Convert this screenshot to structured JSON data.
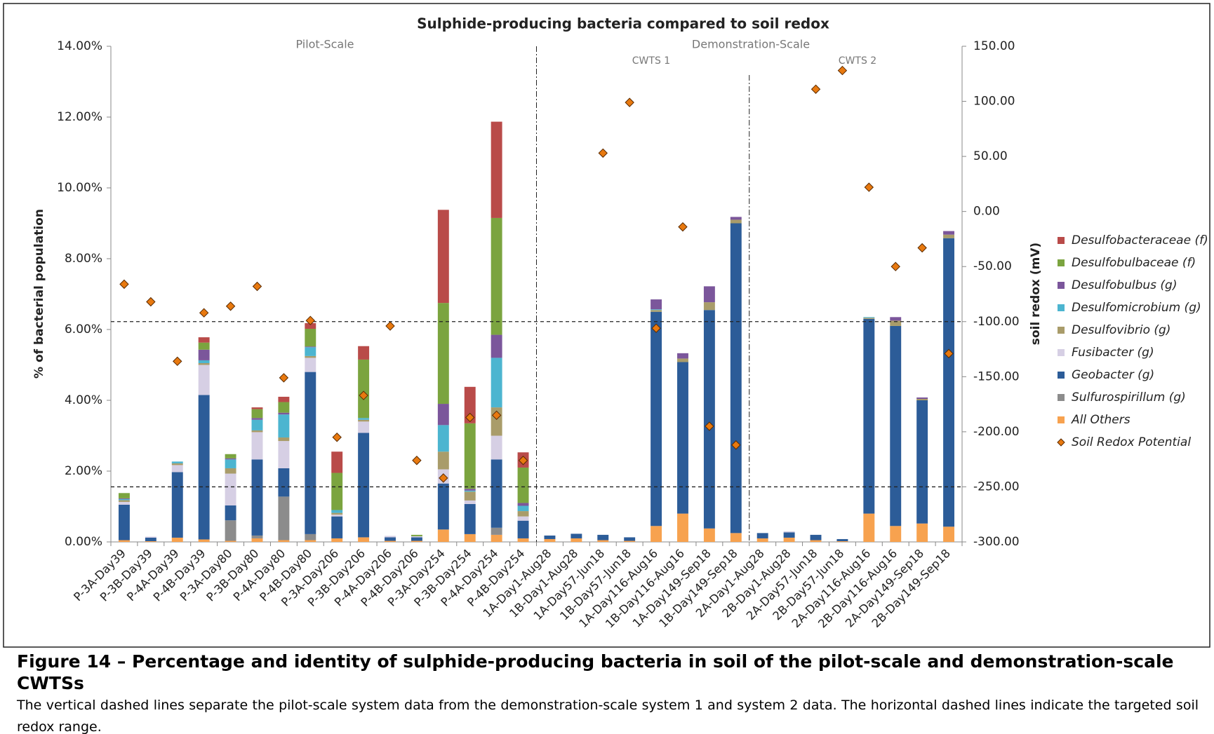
{
  "chart_data": {
    "type": "bar",
    "stacked": true,
    "title": "Sulphide-producing bacteria compared to soil redox",
    "ylabel": "% of bacterial population",
    "y2label": "soil redox (mV)",
    "annotations": [
      "Pilot-Scale",
      "Demonstration-Scale",
      "CWTS 1",
      "CWTS 2"
    ],
    "categories": [
      "P-3A-Day39",
      "P-3B-Day39",
      "P-4A-Day39",
      "P-4B-Day39",
      "P-3A-Day80",
      "P-3B-Day80",
      "P-4A-Day80",
      "P-4B-Day80",
      "P-3A-Day206",
      "P-3B-Day206",
      "P-4A-Day206",
      "P-4B-Day206",
      "P-3A-Day254",
      "P-3B-Day254",
      "P-4A-Day254",
      "P-4B-Day254",
      "1A-Day1-Aug28",
      "1B-Day1-Aug28",
      "1A-Day57-Jun18",
      "1B-Day57-Jun18",
      "1A-Day116-Aug16",
      "1B-Day116-Aug16",
      "1A-Day149-Sep18",
      "1B-Day149-Sep18",
      "2A-Day1-Aug28",
      "2B-Day1-Aug28",
      "2A-Day57-Jun18",
      "2B-Day57-Jun18",
      "2A-Day116-Aug16",
      "2B-Day116-Aug16",
      "2A-Day149-Sep18",
      "2B-Day149-Sep18"
    ],
    "series": [
      {
        "name": "All Others",
        "color": "#f7a24f",
        "values": [
          0.05,
          0.02,
          0.12,
          0.07,
          0.03,
          0.1,
          0.05,
          0.05,
          0.1,
          0.13,
          0.03,
          0.03,
          0.35,
          0.22,
          0.2,
          0.1,
          0.08,
          0.1,
          0.05,
          0.03,
          0.45,
          0.8,
          0.38,
          0.25,
          0.1,
          0.12,
          0.05,
          0.02,
          0.8,
          0.45,
          0.52,
          0.43
        ]
      },
      {
        "name": "Sulfurospirillum (g)",
        "color": "#8c8c8c",
        "values": [
          0,
          0,
          0,
          0,
          0.58,
          0.08,
          1.23,
          0.17,
          0,
          0,
          0,
          0,
          0,
          0,
          0.2,
          0,
          0,
          0,
          0,
          0,
          0,
          0,
          0,
          0,
          0,
          0,
          0,
          0,
          0,
          0,
          0,
          0
        ]
      },
      {
        "name": "Geobacter (g)",
        "color": "#2c5c98",
        "values": [
          1.0,
          0.1,
          1.85,
          4.08,
          0.42,
          2.15,
          0.8,
          4.58,
          0.62,
          2.95,
          0.1,
          0.1,
          1.3,
          0.85,
          1.93,
          0.5,
          0.1,
          0.13,
          0.15,
          0.1,
          6.05,
          4.28,
          6.17,
          8.75,
          0.15,
          0.15,
          0.15,
          0.06,
          5.5,
          5.65,
          3.48,
          8.15
        ]
      },
      {
        "name": "Fusibacter (g)",
        "color": "#d6cfe4",
        "values": [
          0.08,
          0.03,
          0.2,
          0.85,
          0.9,
          0.77,
          0.77,
          0.4,
          0.05,
          0.32,
          0.04,
          0.03,
          0.4,
          0.1,
          0.67,
          0.12,
          0,
          0,
          0,
          0,
          0,
          0,
          0,
          0,
          0,
          0.03,
          0,
          0,
          0,
          0,
          0,
          0
        ]
      },
      {
        "name": "Desulfovibrio (g)",
        "color": "#a99c6a",
        "values": [
          0.05,
          0,
          0.05,
          0.05,
          0.15,
          0.05,
          0.1,
          0.05,
          0.05,
          0.05,
          0,
          0,
          0.5,
          0.25,
          0.8,
          0.15,
          0,
          0,
          0,
          0,
          0.05,
          0.1,
          0.22,
          0.1,
          0,
          0,
          0,
          0,
          0.03,
          0.15,
          0.04,
          0.1
        ]
      },
      {
        "name": "Desulfomicrobium (g)",
        "color": "#4cb5d0",
        "values": [
          0.03,
          0,
          0.05,
          0.08,
          0.25,
          0.3,
          0.65,
          0.25,
          0.08,
          0.05,
          0,
          0,
          0.75,
          0.03,
          1.4,
          0.15,
          0,
          0,
          0,
          0,
          0.02,
          0,
          0,
          0,
          0,
          0,
          0,
          0,
          0.02,
          0,
          0,
          0
        ]
      },
      {
        "name": "Desulfobulbus (g)",
        "color": "#7b569b",
        "values": [
          0.02,
          0,
          0,
          0.3,
          0.03,
          0.05,
          0.05,
          0.02,
          0,
          0,
          0,
          0,
          0.6,
          0.05,
          0.65,
          0.08,
          0,
          0,
          0,
          0,
          0.28,
          0.15,
          0.45,
          0.08,
          0,
          0,
          0,
          0,
          0,
          0.1,
          0.04,
          0.1
        ]
      },
      {
        "name": "Desulfobulbaceae (f)",
        "color": "#7ba43f",
        "values": [
          0.15,
          0,
          0,
          0.2,
          0.12,
          0.25,
          0.3,
          0.5,
          1.05,
          1.65,
          0,
          0.04,
          2.85,
          1.85,
          3.3,
          1.0,
          0,
          0,
          0,
          0,
          0,
          0,
          0,
          0,
          0,
          0,
          0,
          0,
          0,
          0,
          0,
          0
        ]
      },
      {
        "name": "Desulfobacteraceae (f)",
        "color": "#b94b49",
        "values": [
          0,
          0,
          0,
          0.15,
          0,
          0.05,
          0.15,
          0.16,
          0.6,
          0.38,
          0,
          0,
          2.63,
          1.03,
          2.72,
          0.43,
          0,
          0,
          0,
          0,
          0,
          0,
          0,
          0,
          0,
          0,
          0,
          0,
          0,
          0,
          0,
          0
        ]
      },
      {
        "name": "Soil Redox Potential",
        "type": "scatter",
        "axis": "y2",
        "color": "#e8790f",
        "values": [
          -66,
          -82,
          -136,
          -92,
          -86,
          -68,
          -151,
          -99,
          -205,
          -167,
          -104,
          -226,
          -242,
          -187,
          -185,
          -226,
          null,
          null,
          53,
          99,
          -106,
          -14,
          -195,
          -212,
          null,
          null,
          111,
          128,
          22,
          -50,
          -33,
          -129
        ]
      }
    ],
    "ylim": [
      0,
      14
    ],
    "yticks": [
      {
        "value": 0,
        "label": "0.00%"
      },
      {
        "value": 2,
        "label": "2.00%"
      },
      {
        "value": 4,
        "label": "4.00%"
      },
      {
        "value": 6,
        "label": "6.00%"
      },
      {
        "value": 8,
        "label": "8.00%"
      },
      {
        "value": 10,
        "label": "10.00%"
      },
      {
        "value": 12,
        "label": "12.00%"
      },
      {
        "value": 14,
        "label": "14.00%"
      }
    ],
    "y2lim": [
      -300,
      150
    ],
    "y2ticks": [
      {
        "value": -300,
        "label": "-300.00"
      },
      {
        "value": -250,
        "label": "-250.00"
      },
      {
        "value": -200,
        "label": "-200.00"
      },
      {
        "value": -150,
        "label": "-150.00"
      },
      {
        "value": -100,
        "label": "-100.00"
      },
      {
        "value": -50,
        "label": "-50.00"
      },
      {
        "value": 0,
        "label": "0.00"
      },
      {
        "value": 50,
        "label": "50.00"
      },
      {
        "value": 100,
        "label": "100.00"
      },
      {
        "value": 150,
        "label": "150.00"
      }
    ],
    "y2_reference_lines": [
      -100,
      -250
    ],
    "legend": "right"
  },
  "caption": {
    "title": "Figure 14 – Percentage and identity of sulphide-producing bacteria in soil of the pilot-scale and demonstration-scale CWTSs",
    "text": "The vertical dashed lines separate the pilot-scale system data from the demonstration-scale system 1 and system 2 data.  The horizontal dashed lines indicate the targeted soil redox range."
  }
}
